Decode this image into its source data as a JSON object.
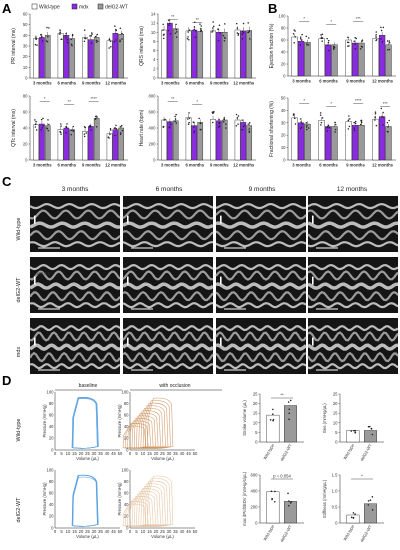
{
  "colors": {
    "wildtype": "#ffffff",
    "mdx": "#8a2be2",
    "delG2WT": "#9a9a9a",
    "blue_loop": "#5aa0e0",
    "orange_loop": "#c8864a"
  },
  "panel_labels": [
    "A",
    "B",
    "C",
    "D"
  ],
  "legend": [
    "Wild-type",
    "mdx",
    "delG2-WT"
  ],
  "months": [
    "3 months",
    "6 months",
    "9 months",
    "12 months"
  ],
  "panel_c": {
    "columns": [
      "3 months",
      "6 months",
      "9 months",
      "12 months"
    ],
    "rows": [
      "Wild-type",
      "delG2-WT",
      "mdx"
    ],
    "scale_label": "100 ms"
  },
  "panel_d": {
    "col_titles": [
      "baseline",
      "with occlusion"
    ],
    "rows": [
      "Wild-type",
      "delG2-WT"
    ],
    "pv_ylabel": "Pressure (mmHg)",
    "pv_xlabel": "Volume (µL)",
    "pv_yticks": [
      "100",
      "80",
      "60",
      "40",
      "20",
      "0"
    ],
    "pv_xticks": [
      "0",
      "5",
      "10",
      "15",
      "20",
      "25",
      "30",
      "35",
      "40",
      "45",
      "50"
    ],
    "bar_categories": [
      "Wild-type",
      "delG2-WT"
    ],
    "pvalue_label": "p = 0.054"
  },
  "chart_data": [
    {
      "type": "bar",
      "title": "",
      "ylabel": "PR interval (ms)",
      "yticks": [
        "0",
        "10",
        "20",
        "30",
        "40",
        "50",
        "60"
      ],
      "ylim": [
        0,
        60
      ],
      "categories": [
        "3 months",
        "6 months",
        "9 months",
        "12 months"
      ],
      "series": [
        {
          "name": "Wild-type",
          "values": [
            37,
            42,
            38,
            35
          ]
        },
        {
          "name": "mdx",
          "values": [
            38,
            40,
            36,
            42
          ]
        },
        {
          "name": "delG2-WT",
          "values": [
            40,
            37,
            38,
            41
          ]
        }
      ],
      "annotations": []
    },
    {
      "type": "bar",
      "title": "",
      "ylabel": "QRS interval (ms)",
      "yticks": [
        "0",
        "2",
        "4",
        "6",
        "8",
        "10",
        "12",
        "14"
      ],
      "ylim": [
        0,
        14
      ],
      "categories": [
        "3 months",
        "6 months",
        "9 months",
        "12 months"
      ],
      "series": [
        {
          "name": "Wild-type",
          "values": [
            10.5,
            10.3,
            10.3,
            10.5
          ]
        },
        {
          "name": "mdx",
          "values": [
            12.0,
            10.5,
            10.0,
            10.3
          ]
        },
        {
          "name": "delG2-WT",
          "values": [
            10.8,
            10.2,
            10.0,
            10.4
          ]
        }
      ],
      "annotations": [
        "**",
        "**"
      ]
    },
    {
      "type": "bar",
      "title": "",
      "ylabel": "QTc interval (ms)",
      "yticks": [
        "0",
        "20",
        "40",
        "60",
        "80"
      ],
      "ylim": [
        0,
        80
      ],
      "categories": [
        "3 months",
        "6 months",
        "9 months",
        "12 months"
      ],
      "series": [
        {
          "name": "Wild-type",
          "values": [
            44,
            38,
            36,
            33
          ]
        },
        {
          "name": "mdx",
          "values": [
            45,
            40,
            42,
            38
          ]
        },
        {
          "name": "delG2-WT",
          "values": [
            43,
            38,
            52,
            40
          ]
        }
      ],
      "annotations": [
        "*",
        "**",
        "****"
      ]
    },
    {
      "type": "bar",
      "title": "",
      "ylabel": "Heart rate (bpm)",
      "yticks": [
        "0",
        "200",
        "400",
        "600",
        "800"
      ],
      "ylim": [
        0,
        800
      ],
      "categories": [
        "3 months",
        "6 months",
        "9 months",
        "12 months"
      ],
      "series": [
        {
          "name": "Wild-type",
          "values": [
            500,
            530,
            510,
            500
          ]
        },
        {
          "name": "mdx",
          "values": [
            480,
            430,
            490,
            470
          ]
        },
        {
          "name": "delG2-WT",
          "values": [
            490,
            470,
            500,
            430
          ]
        }
      ],
      "annotations": [
        "**",
        "*"
      ]
    },
    {
      "type": "bar",
      "title": "",
      "ylabel": "Ejection fraction (%)",
      "yticks": [
        "0",
        "20",
        "40",
        "60",
        "80",
        "100"
      ],
      "ylim": [
        0,
        100
      ],
      "categories": [
        "3 months",
        "6 months",
        "9 months",
        "12 months"
      ],
      "series": [
        {
          "name": "Wild-type",
          "values": [
            65,
            62,
            60,
            63
          ]
        },
        {
          "name": "mdx",
          "values": [
            58,
            52,
            55,
            68
          ]
        },
        {
          "name": "delG2-WT",
          "values": [
            56,
            52,
            55,
            52
          ]
        }
      ],
      "annotations": [
        "*",
        "*",
        "***"
      ]
    },
    {
      "type": "bar",
      "title": "",
      "ylabel": "Fractional shortening (%)",
      "yticks": [
        "0",
        "10",
        "20",
        "30",
        "40",
        "50"
      ],
      "ylim": [
        0,
        50
      ],
      "categories": [
        "3 months",
        "6 months",
        "9 months",
        "12 months"
      ],
      "series": [
        {
          "name": "Wild-type",
          "values": [
            34,
            32,
            31,
            33
          ]
        },
        {
          "name": "mdx",
          "values": [
            30,
            27,
            28,
            35
          ]
        },
        {
          "name": "delG2-WT",
          "values": [
            29,
            27,
            28,
            27
          ]
        }
      ],
      "annotations": [
        "*",
        "*",
        "****",
        "***"
      ]
    },
    {
      "type": "bar",
      "title": "",
      "ylabel": "Stroke volume (µL)",
      "yticks": [
        "0",
        "5",
        "10",
        "15",
        "20",
        "25"
      ],
      "ylim": [
        0,
        25
      ],
      "categories": [
        "Wild-type",
        "delG2-WT"
      ],
      "values": [
        14,
        19
      ],
      "annotations": [
        "**"
      ]
    },
    {
      "type": "bar",
      "title": "",
      "ylabel": "Ees (mmHg/µL)",
      "yticks": [
        "0",
        "5",
        "10",
        "15",
        "20",
        "25"
      ],
      "ylim": [
        0,
        25
      ],
      "categories": [
        "Wild-type",
        "delG2-WT"
      ],
      "values": [
        6,
        6
      ],
      "annotations": []
    },
    {
      "type": "bar",
      "title": "",
      "ylabel": "max dP/dt/EDV (mmHg/s/µL)",
      "yticks": [
        "0",
        "200",
        "400",
        "600"
      ],
      "ylim": [
        0,
        600
      ],
      "categories": [
        "Wild-type",
        "delG2-WT"
      ],
      "values": [
        390,
        270
      ],
      "annotations": [
        "p = 0.054"
      ]
    },
    {
      "type": "bar",
      "title": "",
      "ylabel": "Stiffness (mmHg/µL)",
      "yticks": [
        "0",
        "0.5",
        "1.0",
        "1.5"
      ],
      "ylim": [
        0,
        1.5
      ],
      "categories": [
        "Wild-type",
        "delG2-WT"
      ],
      "values": [
        0.25,
        0.6
      ],
      "annotations": [
        "*"
      ]
    }
  ]
}
